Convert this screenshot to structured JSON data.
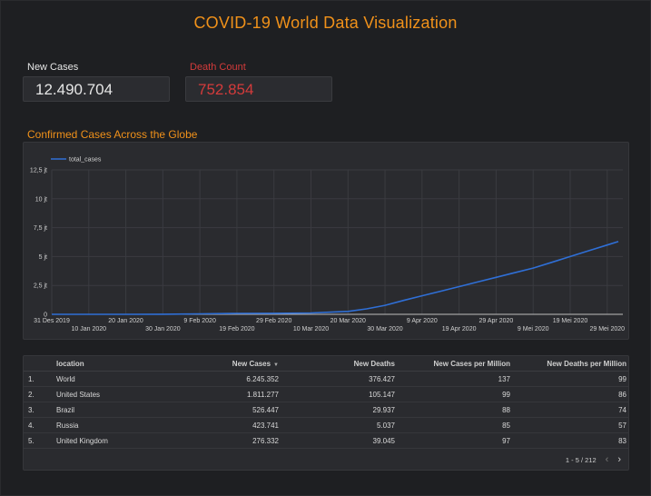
{
  "header": {
    "title": "COVID-19 World Data Visualization"
  },
  "kpis": {
    "new_cases": {
      "label": "New Cases",
      "value": "12.490.704",
      "label_color": "#e6e6e6",
      "value_color": "#e6e6e6"
    },
    "death_count": {
      "label": "Death Count",
      "value": "752.854",
      "label_color": "#d33b3b",
      "value_color": "#d33b3b"
    }
  },
  "chart_section": {
    "title": "Confirmed Cases Across the Globe"
  },
  "chart_data": {
    "type": "line",
    "legend": {
      "entries": [
        "total_cases"
      ],
      "placement": "top-left"
    },
    "series": [
      {
        "name": "total_cases",
        "color": "#2f6fd6",
        "points": [
          [
            "31 Des 2019",
            0
          ],
          [
            "10 Jan 2020",
            0
          ],
          [
            "20 Jan 2020",
            0.0003
          ],
          [
            "30 Jan 2020",
            0.008
          ],
          [
            "9 Feb 2020",
            0.04
          ],
          [
            "19 Feb 2020",
            0.075
          ],
          [
            "29 Feb 2020",
            0.086
          ],
          [
            "10 Mar 2020",
            0.12
          ],
          [
            "20 Mar 2020",
            0.25
          ],
          [
            "25 Mar 2020",
            0.47
          ],
          [
            "30 Mar 2020",
            0.78
          ],
          [
            "4 Apr 2020",
            1.2
          ],
          [
            "9 Apr 2020",
            1.6
          ],
          [
            "14 Apr 2020",
            2.0
          ],
          [
            "19 Apr 2020",
            2.4
          ],
          [
            "24 Apr 2020",
            2.8
          ],
          [
            "29 Apr 2020",
            3.2
          ],
          [
            "4 Mei 2020",
            3.6
          ],
          [
            "9 Mei 2020",
            4.0
          ],
          [
            "14 Mei 2020",
            4.5
          ],
          [
            "19 Mei 2020",
            5.0
          ],
          [
            "24 Mei 2020",
            5.5
          ],
          [
            "29 Mei 2020",
            6.0
          ],
          [
            "1 Jun 2020",
            6.3
          ]
        ]
      }
    ],
    "x_ticks_upper": [
      "31 Des 2019",
      "20 Jan 2020",
      "9 Feb 2020",
      "29 Feb 2020",
      "20 Mar 2020",
      "9 Apr 2020",
      "29 Apr 2020",
      "19 Mei 2020"
    ],
    "x_ticks_lower": [
      "10 Jan 2020",
      "30 Jan 2020",
      "19 Feb 2020",
      "10 Mar 2020",
      "30 Mar 2020",
      "19 Apr 2020",
      "9 Mei 2020",
      "29 Mei 2020"
    ],
    "x_tick_order": [
      "31 Des 2019",
      "10 Jan 2020",
      "20 Jan 2020",
      "30 Jan 2020",
      "9 Feb 2020",
      "19 Feb 2020",
      "29 Feb 2020",
      "10 Mar 2020",
      "20 Mar 2020",
      "30 Mar 2020",
      "9 Apr 2020",
      "19 Apr 2020",
      "29 Apr 2020",
      "9 Mei 2020",
      "19 Mei 2020",
      "29 Mei 2020"
    ],
    "y_ticks": [
      {
        "value": 0,
        "label": "0"
      },
      {
        "value": 2.5,
        "label": "2,5 jt"
      },
      {
        "value": 5,
        "label": "5 jt"
      },
      {
        "value": 7.5,
        "label": "7,5 jt"
      },
      {
        "value": 10,
        "label": "10 jt"
      },
      {
        "value": 12.5,
        "label": "12,5 jt"
      }
    ],
    "ylim": [
      0,
      12.5
    ],
    "grid": true
  },
  "table": {
    "headers": {
      "location": "location",
      "new_cases": "New Cases",
      "new_deaths": "New Deaths",
      "new_cases_per_million": "New Cases per Million",
      "new_deaths_per_million": "New Deaths per Million"
    },
    "rows": [
      {
        "index": "1.",
        "location": "World",
        "new_cases": "6.245.352",
        "new_deaths": "376.427",
        "new_cases_per_million": "137",
        "new_deaths_per_million": "99"
      },
      {
        "index": "2.",
        "location": "United States",
        "new_cases": "1.811.277",
        "new_deaths": "105.147",
        "new_cases_per_million": "99",
        "new_deaths_per_million": "86"
      },
      {
        "index": "3.",
        "location": "Brazil",
        "new_cases": "526.447",
        "new_deaths": "29.937",
        "new_cases_per_million": "88",
        "new_deaths_per_million": "74"
      },
      {
        "index": "4.",
        "location": "Russia",
        "new_cases": "423.741",
        "new_deaths": "5.037",
        "new_cases_per_million": "85",
        "new_deaths_per_million": "57"
      },
      {
        "index": "5.",
        "location": "United Kingdom",
        "new_cases": "276.332",
        "new_deaths": "39.045",
        "new_cases_per_million": "97",
        "new_deaths_per_million": "83"
      }
    ],
    "pagination": "1 - 5 / 212"
  },
  "theme": {
    "accent": "#f0911a",
    "line": "#2f6fd6",
    "danger": "#d33b3b"
  }
}
